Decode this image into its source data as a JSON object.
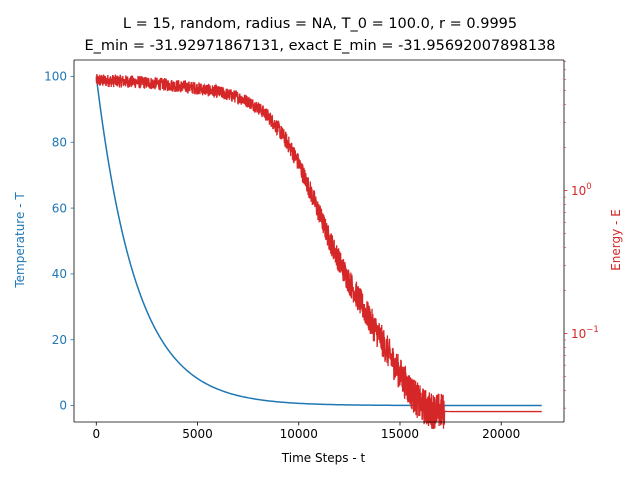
{
  "chart_data": {
    "type": "line",
    "title_line1": "L = 15, random, radius = NA, T_0 = 100.0, r = 0.9995",
    "title_line2": "E_min = -31.92971867131, exact E_min = -31.95692007898138",
    "xlabel": "Time Steps - t",
    "ylabel_left": "Temperature - T",
    "ylabel_right": "Energy - E",
    "xlim": [
      -1100,
      23100
    ],
    "ylim_left": [
      -5,
      105
    ],
    "ylim_right_log": [
      0.024,
      8.2
    ],
    "right_scale": "log",
    "grid": false,
    "x_ticks": [
      0,
      5000,
      10000,
      15000,
      20000
    ],
    "x_tick_labels": [
      "0",
      "5000",
      "10000",
      "15000",
      "20000"
    ],
    "y_left_ticks": [
      0,
      20,
      40,
      60,
      80,
      100
    ],
    "y_left_tick_labels": [
      "0",
      "20",
      "40",
      "60",
      "80",
      "100"
    ],
    "y_right_major_ticks": [
      {
        "value": 0.1,
        "base": "10",
        "exp": "−1"
      },
      {
        "value": 1,
        "base": "10",
        "exp": "0"
      }
    ],
    "colors": {
      "temperature": "#1f77b4",
      "energy": "#d62728",
      "axis": "#000000"
    },
    "series": [
      {
        "axis": "left",
        "formula": "T = T_0 * r^t",
        "T_0": 100.0,
        "r": 0.9995,
        "x_range": [
          0,
          22000
        ]
      },
      {
        "axis": "right",
        "noisy": true,
        "x": [
          0,
          1000,
          2000,
          3000,
          4000,
          5000,
          6000,
          7000,
          7500,
          8000,
          8500,
          9000,
          9500,
          10000,
          10500,
          11000,
          11500,
          12000,
          12500,
          13000,
          13500,
          14000,
          14500,
          15000,
          15500,
          16000,
          16500,
          17000,
          17500,
          22000
        ],
        "y": [
          5.9,
          5.85,
          5.75,
          5.6,
          5.4,
          5.2,
          4.9,
          4.5,
          4.2,
          3.8,
          3.3,
          2.7,
          2.1,
          1.55,
          1.05,
          0.7,
          0.46,
          0.32,
          0.23,
          0.17,
          0.125,
          0.095,
          0.07,
          0.052,
          0.04,
          0.032,
          0.029,
          0.0285,
          0.0284,
          0.0284
        ]
      }
    ]
  }
}
